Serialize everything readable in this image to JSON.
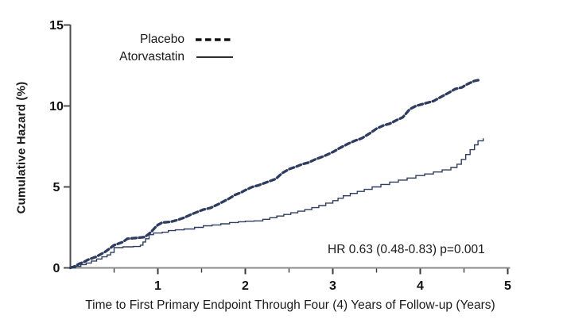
{
  "chart_data": {
    "type": "line",
    "title": "",
    "xlabel": "Time to First Primary Endpoint Through Four (4) Years of Follow-up (Years)",
    "ylabel": "Cumulative Hazard (%)",
    "xlim": [
      0,
      5
    ],
    "ylim": [
      0,
      15
    ],
    "x_major_ticks": [
      1,
      2,
      3,
      4,
      5
    ],
    "x_minor_ticks": [
      0.5,
      1.5,
      2.5,
      3.5,
      4.5
    ],
    "y_ticks": [
      0,
      5,
      10,
      15
    ],
    "grid": "off",
    "legend_position": "top-left-inside",
    "annotation": "HR 0.63 (0.48-0.83)  p=0.001",
    "legend": [
      {
        "label": "Placebo",
        "style": "dashed"
      },
      {
        "label": "Atorvastatin",
        "style": "solid"
      }
    ],
    "series": [
      {
        "name": "Placebo",
        "style": "dashed",
        "color": "#2e3d5f",
        "interpolation": "linear",
        "points": [
          [
            0,
            0
          ],
          [
            0.05,
            0.1
          ],
          [
            0.1,
            0.25
          ],
          [
            0.15,
            0.35
          ],
          [
            0.2,
            0.5
          ],
          [
            0.25,
            0.6
          ],
          [
            0.3,
            0.7
          ],
          [
            0.35,
            0.85
          ],
          [
            0.4,
            1.0
          ],
          [
            0.45,
            1.2
          ],
          [
            0.5,
            1.4
          ],
          [
            0.55,
            1.5
          ],
          [
            0.6,
            1.6
          ],
          [
            0.65,
            1.8
          ],
          [
            0.75,
            1.85
          ],
          [
            0.85,
            1.9
          ],
          [
            0.92,
            2.2
          ],
          [
            0.97,
            2.5
          ],
          [
            1.0,
            2.65
          ],
          [
            1.05,
            2.8
          ],
          [
            1.15,
            2.85
          ],
          [
            1.22,
            2.95
          ],
          [
            1.3,
            3.1
          ],
          [
            1.38,
            3.3
          ],
          [
            1.45,
            3.45
          ],
          [
            1.52,
            3.6
          ],
          [
            1.6,
            3.7
          ],
          [
            1.68,
            3.9
          ],
          [
            1.75,
            4.1
          ],
          [
            1.82,
            4.3
          ],
          [
            1.88,
            4.5
          ],
          [
            1.95,
            4.65
          ],
          [
            2.0,
            4.8
          ],
          [
            2.08,
            5.0
          ],
          [
            2.15,
            5.1
          ],
          [
            2.25,
            5.3
          ],
          [
            2.35,
            5.5
          ],
          [
            2.42,
            5.85
          ],
          [
            2.5,
            6.1
          ],
          [
            2.58,
            6.25
          ],
          [
            2.65,
            6.4
          ],
          [
            2.72,
            6.5
          ],
          [
            2.8,
            6.7
          ],
          [
            2.9,
            6.9
          ],
          [
            3.0,
            7.15
          ],
          [
            3.08,
            7.4
          ],
          [
            3.17,
            7.65
          ],
          [
            3.25,
            7.85
          ],
          [
            3.33,
            8.0
          ],
          [
            3.42,
            8.3
          ],
          [
            3.5,
            8.6
          ],
          [
            3.58,
            8.8
          ],
          [
            3.65,
            8.9
          ],
          [
            3.72,
            9.1
          ],
          [
            3.8,
            9.3
          ],
          [
            3.88,
            9.8
          ],
          [
            3.95,
            10.0
          ],
          [
            4.05,
            10.15
          ],
          [
            4.15,
            10.3
          ],
          [
            4.25,
            10.6
          ],
          [
            4.32,
            10.8
          ],
          [
            4.4,
            11.05
          ],
          [
            4.48,
            11.15
          ],
          [
            4.52,
            11.3
          ],
          [
            4.58,
            11.45
          ],
          [
            4.62,
            11.55
          ],
          [
            4.67,
            11.6
          ]
        ]
      },
      {
        "name": "Atorvastatin",
        "style": "solid",
        "color": "#2e3d5f",
        "interpolation": "step-after",
        "points": [
          [
            0,
            0
          ],
          [
            0.06,
            0.1
          ],
          [
            0.12,
            0.2
          ],
          [
            0.18,
            0.3
          ],
          [
            0.24,
            0.42
          ],
          [
            0.3,
            0.55
          ],
          [
            0.36,
            0.68
          ],
          [
            0.42,
            0.8
          ],
          [
            0.46,
            0.95
          ],
          [
            0.5,
            1.25
          ],
          [
            0.6,
            1.3
          ],
          [
            0.72,
            1.32
          ],
          [
            0.8,
            1.4
          ],
          [
            0.83,
            1.6
          ],
          [
            0.86,
            1.8
          ],
          [
            0.9,
            2.05
          ],
          [
            0.95,
            2.15
          ],
          [
            1.05,
            2.2
          ],
          [
            1.12,
            2.3
          ],
          [
            1.2,
            2.35
          ],
          [
            1.3,
            2.4
          ],
          [
            1.42,
            2.5
          ],
          [
            1.52,
            2.6
          ],
          [
            1.62,
            2.65
          ],
          [
            1.72,
            2.72
          ],
          [
            1.82,
            2.8
          ],
          [
            1.92,
            2.85
          ],
          [
            2.0,
            2.88
          ],
          [
            2.1,
            2.9
          ],
          [
            2.2,
            3.0
          ],
          [
            2.28,
            3.1
          ],
          [
            2.36,
            3.2
          ],
          [
            2.44,
            3.3
          ],
          [
            2.52,
            3.4
          ],
          [
            2.6,
            3.5
          ],
          [
            2.68,
            3.6
          ],
          [
            2.76,
            3.72
          ],
          [
            2.84,
            3.85
          ],
          [
            2.92,
            4.0
          ],
          [
            3.0,
            4.15
          ],
          [
            3.06,
            4.3
          ],
          [
            3.12,
            4.45
          ],
          [
            3.2,
            4.6
          ],
          [
            3.28,
            4.72
          ],
          [
            3.36,
            4.85
          ],
          [
            3.45,
            5.0
          ],
          [
            3.55,
            5.15
          ],
          [
            3.65,
            5.3
          ],
          [
            3.75,
            5.42
          ],
          [
            3.85,
            5.55
          ],
          [
            3.95,
            5.7
          ],
          [
            4.05,
            5.8
          ],
          [
            4.15,
            5.92
          ],
          [
            4.25,
            6.05
          ],
          [
            4.35,
            6.2
          ],
          [
            4.42,
            6.4
          ],
          [
            4.47,
            6.7
          ],
          [
            4.52,
            7.0
          ],
          [
            4.57,
            7.3
          ],
          [
            4.62,
            7.6
          ],
          [
            4.66,
            7.85
          ],
          [
            4.72,
            8.0
          ]
        ]
      }
    ],
    "colors": {
      "curve": "#2e3d5f",
      "legend_sample": "#111111",
      "y_axis_line": "#4d4d4d",
      "x_axis_line": "#8a8a8a",
      "tick": "#3a3a3a",
      "text": "#111111"
    }
  }
}
